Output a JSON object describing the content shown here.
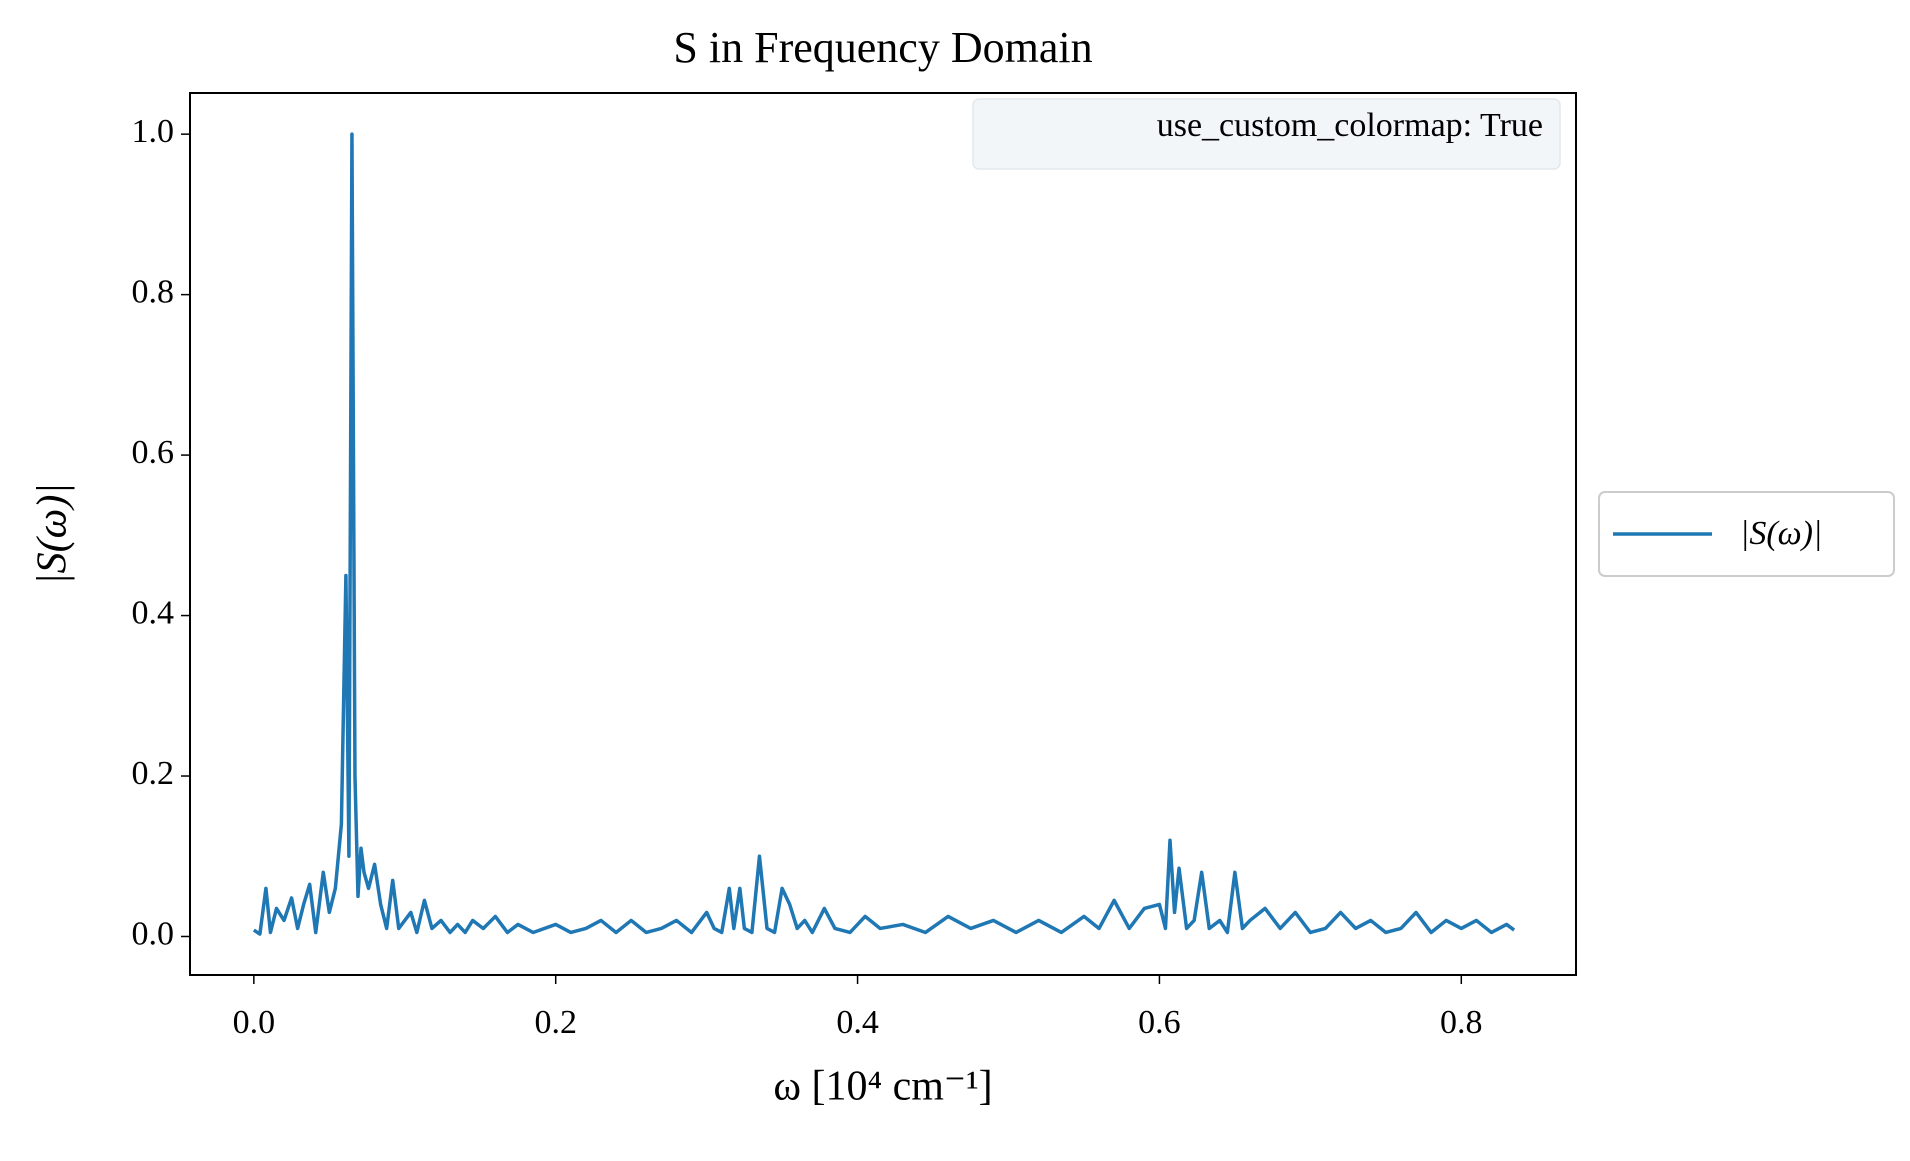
{
  "chart_data": {
    "type": "line",
    "title": "S in Frequency Domain",
    "x_label": "ω [10⁴ cm⁻¹]",
    "y_label": "|S(ω)|",
    "annotation": "use_custom_colormap: True",
    "legend": "right",
    "x": [
      0.0,
      0.004,
      0.008,
      0.011,
      0.015,
      0.02,
      0.025,
      0.029,
      0.033,
      0.037,
      0.041,
      0.046,
      0.05,
      0.054,
      0.058,
      0.061,
      0.063,
      0.065,
      0.067,
      0.069,
      0.071,
      0.073,
      0.076,
      0.08,
      0.084,
      0.088,
      0.092,
      0.096,
      0.1,
      0.104,
      0.108,
      0.113,
      0.118,
      0.124,
      0.13,
      0.135,
      0.14,
      0.145,
      0.152,
      0.16,
      0.168,
      0.175,
      0.185,
      0.2,
      0.21,
      0.22,
      0.23,
      0.24,
      0.25,
      0.26,
      0.27,
      0.28,
      0.29,
      0.3,
      0.305,
      0.31,
      0.315,
      0.318,
      0.322,
      0.325,
      0.33,
      0.335,
      0.34,
      0.345,
      0.35,
      0.355,
      0.36,
      0.365,
      0.37,
      0.378,
      0.385,
      0.395,
      0.405,
      0.415,
      0.43,
      0.445,
      0.46,
      0.475,
      0.49,
      0.505,
      0.52,
      0.535,
      0.55,
      0.56,
      0.57,
      0.58,
      0.59,
      0.6,
      0.604,
      0.607,
      0.61,
      0.613,
      0.618,
      0.623,
      0.628,
      0.633,
      0.64,
      0.645,
      0.65,
      0.655,
      0.66,
      0.67,
      0.68,
      0.69,
      0.7,
      0.71,
      0.72,
      0.73,
      0.74,
      0.75,
      0.76,
      0.77,
      0.78,
      0.79,
      0.8,
      0.81,
      0.82,
      0.83,
      0.835
    ],
    "series": [
      {
        "name": "|S(ω)|",
        "color": "#1f77b4",
        "values": [
          0.008,
          0.003,
          0.06,
          0.005,
          0.035,
          0.02,
          0.048,
          0.01,
          0.04,
          0.065,
          0.005,
          0.08,
          0.03,
          0.06,
          0.14,
          0.45,
          0.1,
          1.0,
          0.2,
          0.05,
          0.11,
          0.08,
          0.06,
          0.09,
          0.04,
          0.01,
          0.07,
          0.01,
          0.02,
          0.03,
          0.005,
          0.045,
          0.01,
          0.02,
          0.005,
          0.015,
          0.005,
          0.02,
          0.01,
          0.025,
          0.005,
          0.015,
          0.005,
          0.015,
          0.005,
          0.01,
          0.02,
          0.005,
          0.02,
          0.005,
          0.01,
          0.02,
          0.005,
          0.03,
          0.01,
          0.005,
          0.06,
          0.01,
          0.06,
          0.01,
          0.005,
          0.1,
          0.01,
          0.005,
          0.06,
          0.04,
          0.01,
          0.02,
          0.005,
          0.035,
          0.01,
          0.005,
          0.025,
          0.01,
          0.015,
          0.005,
          0.025,
          0.01,
          0.02,
          0.005,
          0.02,
          0.005,
          0.025,
          0.01,
          0.045,
          0.01,
          0.035,
          0.04,
          0.01,
          0.12,
          0.03,
          0.085,
          0.01,
          0.02,
          0.08,
          0.01,
          0.02,
          0.005,
          0.08,
          0.01,
          0.02,
          0.035,
          0.01,
          0.03,
          0.005,
          0.01,
          0.03,
          0.01,
          0.02,
          0.005,
          0.01,
          0.03,
          0.005,
          0.02,
          0.01,
          0.02,
          0.005,
          0.015,
          0.008
        ]
      }
    ],
    "xlim": [
      -0.0423,
      0.876
    ],
    "ylim": [
      -0.048,
      1.0513
    ],
    "xticks": [
      {
        "value": 0,
        "label": "0.0"
      },
      0.2,
      0.4,
      0.6,
      0.8
    ],
    "yticks": [
      {
        "value": 0,
        "label": "0.0"
      },
      0.2,
      0.4,
      0.6,
      0.8,
      {
        "value": 1,
        "label": "1.0"
      }
    ]
  }
}
